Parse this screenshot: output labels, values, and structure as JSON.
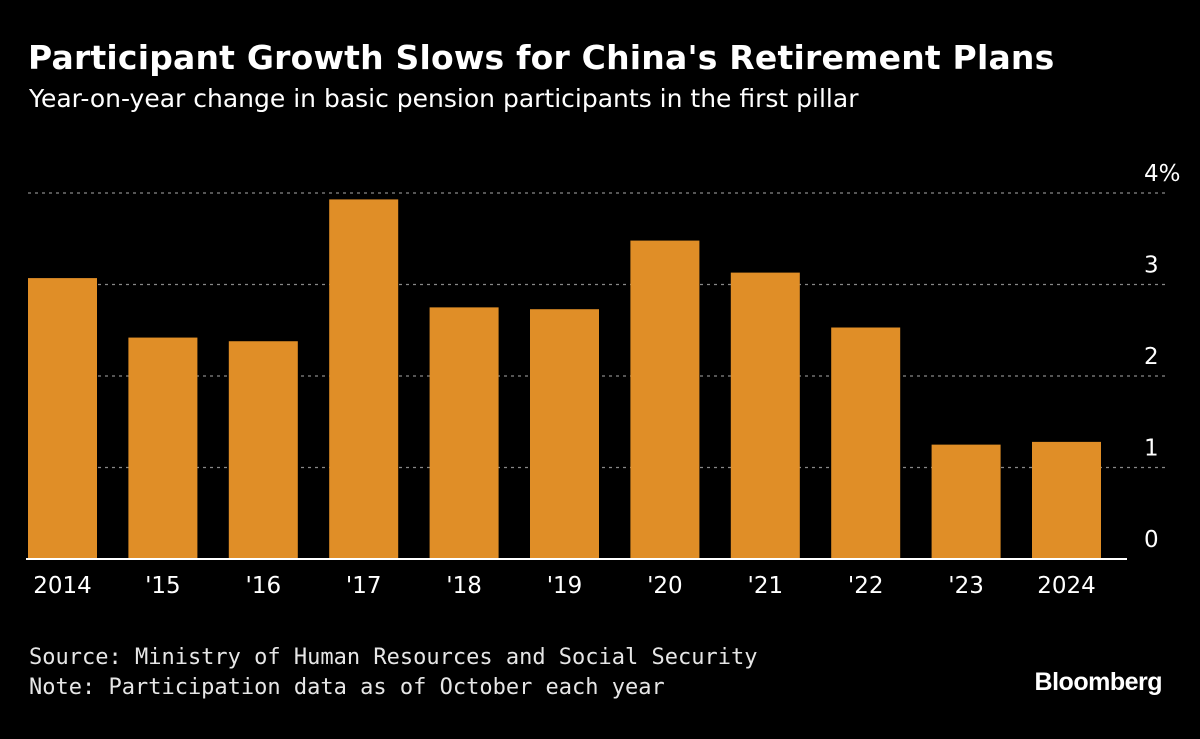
{
  "title": "Participant Growth Slows for China's Retirement Plans",
  "subtitle": "Year-on-year change in basic pension participants in the first pillar",
  "source": "Source: Ministry of Human Resources and Social Security",
  "note": "Note: Participation data as of October each year",
  "logo": "Bloomberg",
  "colors": {
    "background": "#000000",
    "bar": "#E08E27",
    "text": "#ffffff",
    "grid": "#888888"
  },
  "chart_data": {
    "type": "bar",
    "categories": [
      "2014",
      "'15",
      "'16",
      "'17",
      "'18",
      "'19",
      "'20",
      "'21",
      "'22",
      "'23",
      "2024"
    ],
    "values": [
      3.07,
      2.42,
      2.38,
      3.93,
      2.75,
      2.73,
      3.48,
      3.13,
      2.53,
      1.25,
      1.28
    ],
    "yticks": [
      {
        "value": 4,
        "label": "4%"
      },
      {
        "value": 3,
        "label": "3"
      },
      {
        "value": 2,
        "label": "2"
      },
      {
        "value": 1,
        "label": "1"
      },
      {
        "value": 0,
        "label": "0"
      }
    ],
    "ylim": [
      0,
      4
    ],
    "grid": true,
    "yaxis_position": "right",
    "xlabel": "",
    "ylabel": ""
  }
}
